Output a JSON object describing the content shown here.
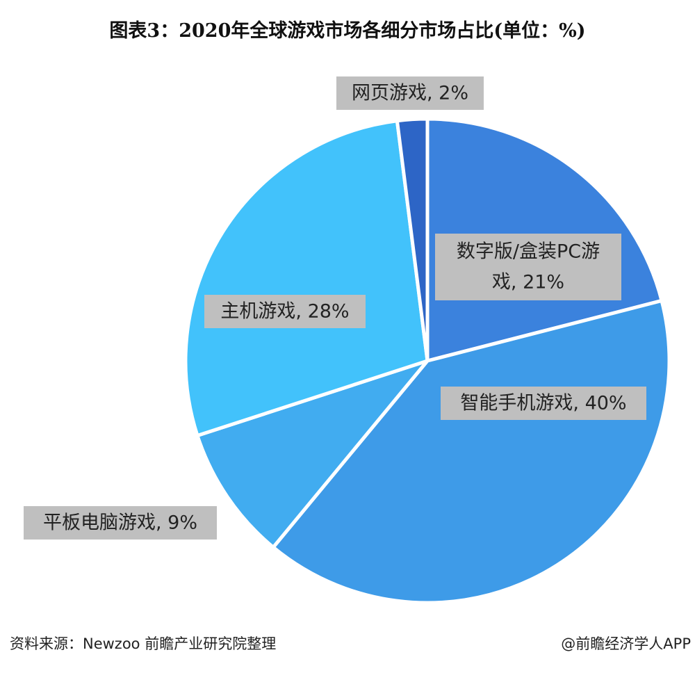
{
  "chart_data": {
    "type": "pie",
    "title": "图表3：2020年全球游戏市场各细分市场占比(单位：%)",
    "unit": "%",
    "slices": [
      {
        "name": "数字版/盒装PC游戏",
        "value": 21,
        "label": [
          "数字版/盒装PC游",
          "戏, 21%"
        ],
        "color": "#3b82dd"
      },
      {
        "name": "智能手机游戏",
        "value": 40,
        "label": [
          "智能手机游戏, 40%"
        ],
        "color": "#3e9be8"
      },
      {
        "name": "平板电脑游戏",
        "value": 9,
        "label": [
          "平板电脑游戏, 9%"
        ],
        "color": "#41acf0"
      },
      {
        "name": "主机游戏",
        "value": 28,
        "label": [
          "主机游戏, 28%"
        ],
        "color": "#42c2fb"
      },
      {
        "name": "网页游戏",
        "value": 2,
        "label": [
          "网页游戏, 2%"
        ],
        "color": "#2d65c6"
      }
    ],
    "legend": "none"
  },
  "footer": {
    "source": "资料来源：Newzoo 前瞻产业研究院整理",
    "credit": "@前瞻经济学人APP"
  }
}
